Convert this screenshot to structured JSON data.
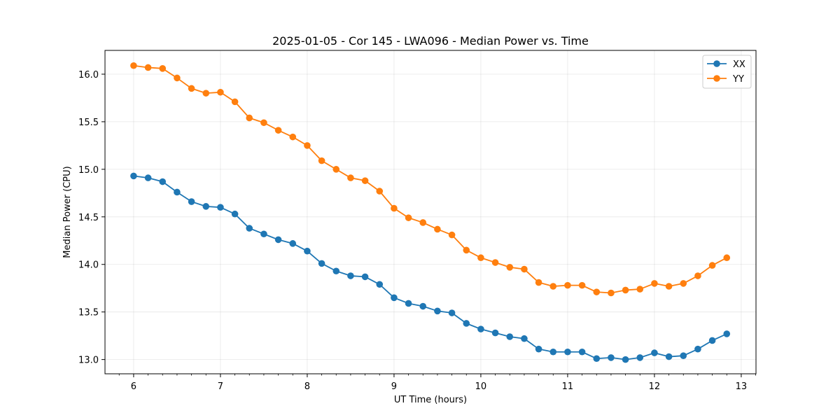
{
  "chart_data": {
    "type": "line",
    "title": "2025-01-05 - Cor 145 - LWA096 - Median Power vs. Time",
    "xlabel": "UT Time (hours)",
    "ylabel": "Median Power (CPU)",
    "xlim": [
      5.67,
      13.17
    ],
    "ylim": [
      12.85,
      16.25
    ],
    "xticks": [
      6,
      7,
      8,
      9,
      10,
      11,
      12,
      13
    ],
    "xtick_labels": [
      "6",
      "7",
      "8",
      "9",
      "10",
      "11",
      "12",
      "13"
    ],
    "yticks": [
      13.0,
      13.5,
      14.0,
      14.5,
      15.0,
      15.5,
      16.0
    ],
    "ytick_labels": [
      "13.0",
      "13.5",
      "14.0",
      "14.5",
      "15.0",
      "15.5",
      "16.0"
    ],
    "grid": true,
    "legend_position": "top-right",
    "x": [
      6.0,
      6.1667,
      6.3333,
      6.5,
      6.6667,
      6.8333,
      7.0,
      7.1667,
      7.3333,
      7.5,
      7.6667,
      7.8333,
      8.0,
      8.1667,
      8.3333,
      8.5,
      8.6667,
      8.8333,
      9.0,
      9.1667,
      9.3333,
      9.5,
      9.6667,
      9.8333,
      10.0,
      10.1667,
      10.3333,
      10.5,
      10.6667,
      10.8333,
      11.0,
      11.1667,
      11.3333,
      11.5,
      11.6667,
      11.8333,
      12.0,
      12.1667,
      12.3333,
      12.5,
      12.6667,
      12.8333
    ],
    "series": [
      {
        "name": "XX",
        "color": "#1f77b4",
        "values": [
          14.93,
          14.91,
          14.87,
          14.76,
          14.66,
          14.61,
          14.6,
          14.53,
          14.38,
          14.32,
          14.26,
          14.22,
          14.14,
          14.01,
          13.93,
          13.88,
          13.87,
          13.79,
          13.65,
          13.59,
          13.56,
          13.51,
          13.49,
          13.38,
          13.32,
          13.28,
          13.24,
          13.22,
          13.11,
          13.08,
          13.08,
          13.08,
          13.01,
          13.02,
          13.0,
          13.02,
          13.07,
          13.03,
          13.04,
          13.11,
          13.2,
          13.27
        ]
      },
      {
        "name": "YY",
        "color": "#ff7f0e",
        "values": [
          16.09,
          16.07,
          16.06,
          15.96,
          15.85,
          15.8,
          15.81,
          15.71,
          15.54,
          15.49,
          15.41,
          15.34,
          15.25,
          15.09,
          15.0,
          14.91,
          14.88,
          14.77,
          14.59,
          14.49,
          14.44,
          14.37,
          14.31,
          14.15,
          14.07,
          14.02,
          13.97,
          13.95,
          13.81,
          13.77,
          13.78,
          13.78,
          13.71,
          13.7,
          13.73,
          13.74,
          13.8,
          13.77,
          13.8,
          13.88,
          13.99,
          14.07
        ]
      }
    ]
  }
}
